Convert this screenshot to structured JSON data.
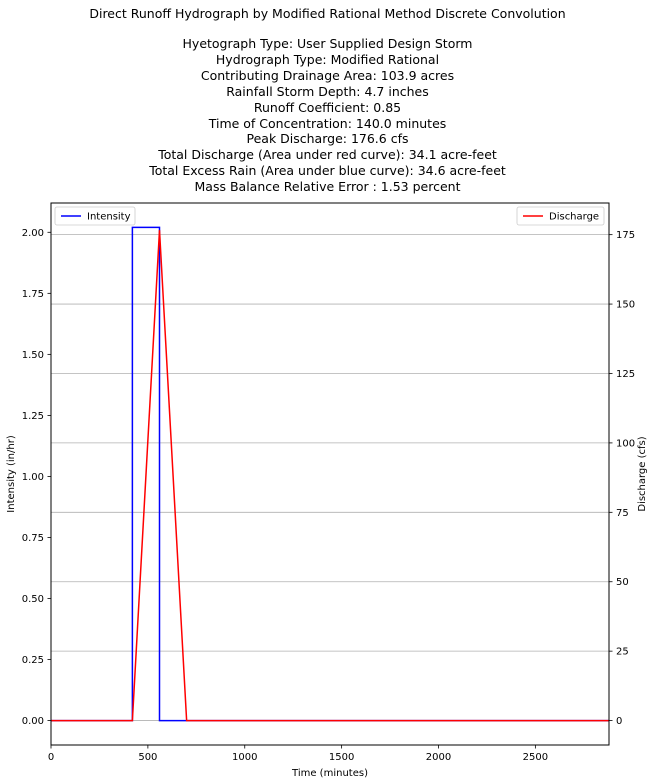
{
  "chart_data": {
    "type": "line",
    "suptitle": "Direct Runoff Hydrograph by Modified Rational Method Discrete Convolution",
    "title_lines": [
      "Hyetograph Type: User Supplied Design Storm",
      "Hydrograph Type: Modified Rational",
      "Contributing Drainage Area: 103.9 acres",
      "Rainfall Storm Depth: 4.7 inches",
      "Runoff Coefficient: 0.85",
      "Time of Concentration: 140.0 minutes",
      "Peak Discharge: 176.6 cfs",
      "Total Discharge (Area under red curve): 34.1 acre-feet",
      "Total Excess Rain (Area under blue curve): 34.6 acre-feet",
      "Mass Balance Relative Error : 1.53 percent"
    ],
    "xlabel": "Time (minutes)",
    "ylabel_left": "Intensity (in/hr)",
    "ylabel_right": "Discharge (cfs)",
    "xlim": [
      0,
      2880
    ],
    "ylim_left": [
      -0.1,
      2.12
    ],
    "ylim_right": [
      -8.8,
      186.4
    ],
    "x_ticks": [
      0,
      500,
      1000,
      1500,
      2000,
      2500
    ],
    "x_tick_labels": [
      "0",
      "500",
      "1000",
      "1500",
      "2000",
      "2500"
    ],
    "y_left_ticks": [
      0.0,
      0.25,
      0.5,
      0.75,
      1.0,
      1.25,
      1.5,
      1.75,
      2.0
    ],
    "y_left_tick_labels": [
      "0.00",
      "0.25",
      "0.50",
      "0.75",
      "1.00",
      "1.25",
      "1.50",
      "1.75",
      "2.00"
    ],
    "y_right_ticks": [
      0,
      25,
      50,
      75,
      100,
      125,
      150,
      175
    ],
    "y_right_tick_labels": [
      "0",
      "25",
      "50",
      "75",
      "100",
      "125",
      "150",
      "175"
    ],
    "grid": "horizontal lines at right-axis ticks",
    "series": [
      {
        "name": "Intensity",
        "axis": "left",
        "color": "#0000ff",
        "x": [
          0,
          420,
          420,
          560,
          560,
          2880
        ],
        "y": [
          0,
          0,
          2.02,
          2.02,
          0,
          0
        ]
      },
      {
        "name": "Discharge",
        "axis": "right",
        "color": "#ff0000",
        "x": [
          0,
          420,
          560,
          700,
          2880
        ],
        "y": [
          0,
          0,
          176.6,
          0,
          0
        ]
      }
    ],
    "legend_left": {
      "placement": "upper-left",
      "label": "Intensity",
      "color": "#0000ff"
    },
    "legend_right": {
      "placement": "upper-right",
      "label": "Discharge",
      "color": "#ff0000"
    }
  }
}
